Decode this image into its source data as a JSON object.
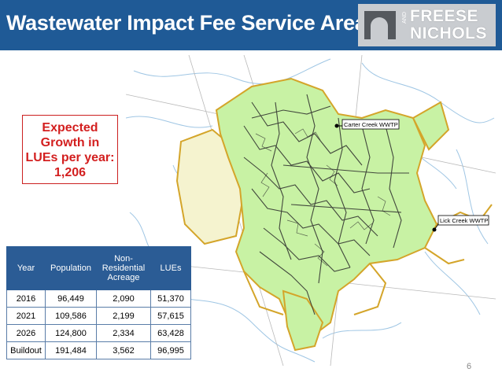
{
  "slide": {
    "title": "Wastewater Impact Fee Service Area",
    "page_number": "6"
  },
  "logo": {
    "line1": "FREESE",
    "and": "AND",
    "line2": "NICHOLS"
  },
  "callout": {
    "line1": "Expected",
    "line2": "Growth in",
    "line3": "LUEs per year:",
    "line4": "1,206",
    "color": "#d31f1f"
  },
  "map": {
    "labels": {
      "carter": "Carter Creek WWTP",
      "lick": "Lick Creek WWTP"
    },
    "service_area_color": "#c8f2a4",
    "boundary_color": "#d4a52a"
  },
  "table": {
    "headers": [
      "Year",
      "Population",
      "Non-Residential Acreage",
      "LUEs"
    ],
    "header_nonres_lines": [
      "Non-",
      "Residential",
      "Acreage"
    ],
    "rows": [
      [
        "2016",
        "96,449",
        "2,090",
        "51,370"
      ],
      [
        "2021",
        "109,586",
        "2,199",
        "57,615"
      ],
      [
        "2026",
        "124,800",
        "2,334",
        "63,428"
      ],
      [
        "Buildout",
        "191,484",
        "3,562",
        "96,995"
      ]
    ]
  },
  "colors": {
    "header_bg": "#1f5a96",
    "table_header": "#2b5c95"
  }
}
